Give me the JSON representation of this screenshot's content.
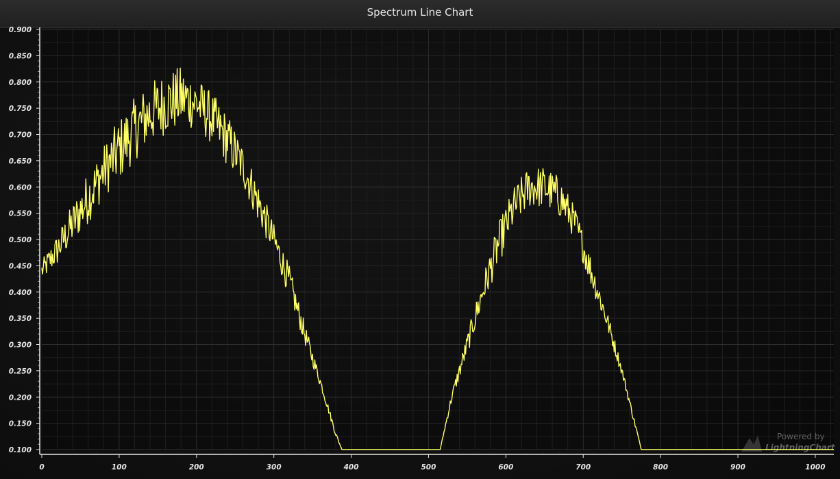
{
  "chart_data": {
    "type": "line",
    "title": "Spectrum Line Chart",
    "xlim": [
      0,
      1024
    ],
    "ylim": [
      0.1,
      0.9
    ],
    "x_ticks": [
      0,
      100,
      200,
      300,
      400,
      500,
      600,
      700,
      800,
      900,
      1000
    ],
    "x_tick_labels": [
      "0",
      "100",
      "200",
      "300",
      "400",
      "500",
      "600",
      "700",
      "800",
      "900",
      "1000"
    ],
    "y_ticks": [
      0.1,
      0.15,
      0.2,
      0.25,
      0.3,
      0.35,
      0.4,
      0.45,
      0.5,
      0.55,
      0.6,
      0.65,
      0.7,
      0.75,
      0.8,
      0.85,
      0.9
    ],
    "y_tick_labels": [
      "0.100",
      "0.150",
      "0.200",
      "0.250",
      "0.300",
      "0.350",
      "0.400",
      "0.450",
      "0.500",
      "0.550",
      "0.600",
      "0.650",
      "0.700",
      "0.750",
      "0.800",
      "0.850",
      "0.900"
    ],
    "grid": true,
    "line_color": "#ffff66",
    "series": [
      {
        "x": [
          0,
          20,
          40,
          60,
          80,
          100,
          120,
          140,
          160,
          180,
          200,
          220,
          240,
          260,
          280,
          300,
          320,
          340,
          360,
          380,
          388,
          400,
          450,
          500,
          515,
          530,
          550,
          570,
          590,
          610,
          630,
          650,
          670,
          690,
          710,
          730,
          750,
          770,
          775,
          800,
          900,
          1024
        ],
        "y": [
          0.44,
          0.48,
          0.53,
          0.58,
          0.63,
          0.67,
          0.71,
          0.74,
          0.76,
          0.77,
          0.76,
          0.73,
          0.69,
          0.64,
          0.57,
          0.5,
          0.42,
          0.32,
          0.23,
          0.13,
          0.1,
          0.1,
          0.1,
          0.1,
          0.1,
          0.2,
          0.3,
          0.4,
          0.49,
          0.56,
          0.6,
          0.6,
          0.58,
          0.53,
          0.44,
          0.35,
          0.25,
          0.13,
          0.1,
          0.1,
          0.1,
          0.1
        ],
        "noise_amplitude": [
          0.02,
          0.03,
          0.04,
          0.05,
          0.05,
          0.06,
          0.06,
          0.06,
          0.06,
          0.06,
          0.05,
          0.05,
          0.05,
          0.04,
          0.04,
          0.03,
          0.03,
          0.02,
          0.01,
          0.005,
          0,
          0,
          0,
          0,
          0,
          0.01,
          0.02,
          0.03,
          0.04,
          0.04,
          0.04,
          0.04,
          0.04,
          0.03,
          0.03,
          0.02,
          0.01,
          0.005,
          0,
          0,
          0,
          0
        ]
      }
    ]
  },
  "watermark": {
    "line1": "Powered by",
    "line2": "LightningChart"
  }
}
